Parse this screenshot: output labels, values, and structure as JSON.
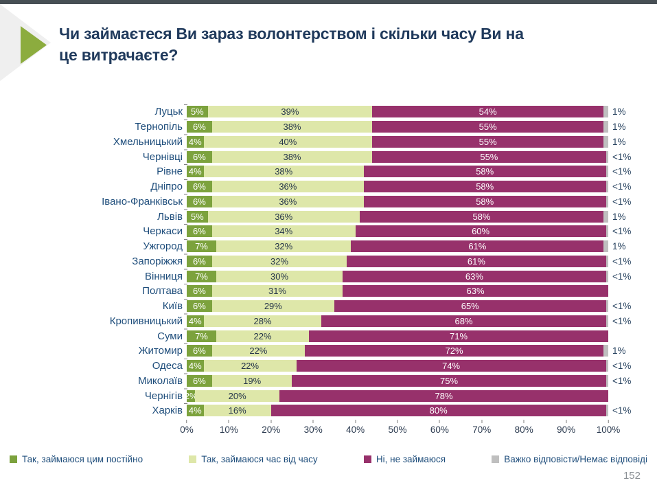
{
  "title": "Чи займаєтеся Ви зараз волонтерством і скільки часу Ви на це витрачаєте?",
  "title_lines": [
    "Чи займаєтеся Ви зараз волонтерством і скільки часу Ви на",
    "це витрачаєте?"
  ],
  "page_number": "152",
  "colors": {
    "topbar": "#474f54",
    "deco-gray": "#efefef",
    "deco-green": "#8cac3e",
    "title": "#203a5c",
    "citytext": "#1e4d7b",
    "axistext": "#2b3a4f",
    "inbar-dark": "#25354a",
    "tailtext": "#27425f",
    "tick": "#7f7f7f",
    "pagenum": "#8a8f94",
    "series-constant": "#7ca23d",
    "series-occasional": "#dee7a9",
    "series-no": "#97316b",
    "series-other": "#bfbfbf"
  },
  "chart_data": {
    "type": "bar",
    "stacked": true,
    "orientation": "horizontal",
    "unit": "%",
    "categories": [
      "Луцьк",
      "Тернопіль",
      "Хмельницький",
      "Чернівці",
      "Рівне",
      "Дніпро",
      "Івано-Франківськ",
      "Львів",
      "Черкаси",
      "Ужгород",
      "Запоріжжя",
      "Вінниця",
      "Полтава",
      "Київ",
      "Кропивницький",
      "Суми",
      "Житомир",
      "Одеса",
      "Миколаїв",
      "Чернігів",
      "Харків"
    ],
    "series": [
      {
        "name": "Так, займаюся цим постійно",
        "color": "#7ca23d",
        "values": [
          5,
          6,
          4,
          6,
          4,
          6,
          6,
          5,
          6,
          7,
          6,
          7,
          6,
          6,
          4,
          7,
          6,
          4,
          6,
          2,
          4
        ]
      },
      {
        "name": "Так, займаюся час від часу",
        "color": "#dee7a9",
        "values": [
          39,
          38,
          40,
          38,
          38,
          36,
          36,
          36,
          34,
          32,
          32,
          30,
          31,
          29,
          28,
          22,
          22,
          22,
          19,
          20,
          16
        ]
      },
      {
        "name": "Ні, не займаюся",
        "color": "#97316b",
        "values": [
          54,
          55,
          55,
          55,
          58,
          58,
          58,
          58,
          60,
          61,
          61,
          63,
          63,
          65,
          68,
          71,
          72,
          74,
          75,
          78,
          80
        ]
      },
      {
        "name": "Важко відповісти/Немає відповіді",
        "color": "#bfbfbf",
        "values": [
          1,
          1,
          1,
          0.5,
          0.5,
          0.5,
          0.5,
          1,
          0.5,
          1,
          0.5,
          0.5,
          0,
          0.5,
          0.5,
          0,
          1,
          0.5,
          0.5,
          0,
          0.5
        ],
        "labels": [
          "1%",
          "1%",
          "1%",
          "<1%",
          "<1%",
          "<1%",
          "<1%",
          "1%",
          "<1%",
          "1%",
          "<1%",
          "<1%",
          "",
          "<1%",
          "<1%",
          "",
          "1%",
          "<1%",
          "<1%",
          "",
          "<1%"
        ]
      }
    ],
    "x_axis": {
      "min": 0,
      "max": 100,
      "ticks": [
        "0%",
        "10%",
        "20%",
        "30%",
        "40%",
        "50%",
        "60%",
        "70%",
        "80%",
        "90%",
        "100%"
      ]
    },
    "legend_position": "bottom",
    "grid": false
  },
  "legend": {
    "items": [
      {
        "label": "Так, займаюся цим постійно",
        "color": "#7ca23d"
      },
      {
        "label": "Так, займаюся час від часу",
        "color": "#dee7a9"
      },
      {
        "label": "Ні, не займаюся",
        "color": "#97316b"
      },
      {
        "label": "Важко відповісти/Немає відповіді",
        "color": "#bfbfbf"
      }
    ]
  }
}
